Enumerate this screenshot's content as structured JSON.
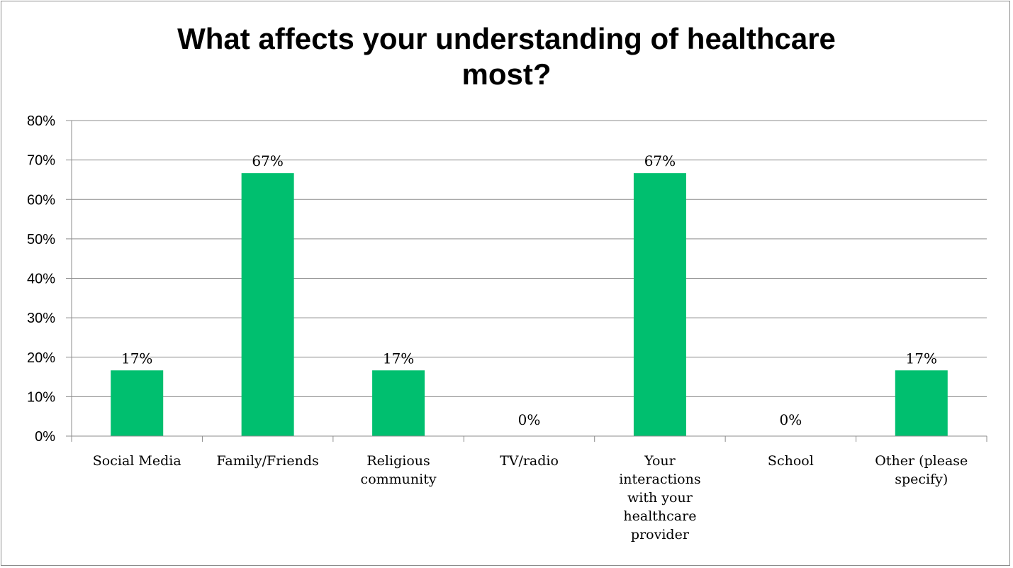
{
  "chart_data": {
    "type": "bar",
    "title_lines": [
      "What affects your understanding of healthcare",
      "most?"
    ],
    "categories": [
      [
        "Social Media"
      ],
      [
        "Family/Friends"
      ],
      [
        "Religious",
        "community"
      ],
      [
        "TV/radio"
      ],
      [
        "Your",
        "interactions",
        "with your",
        "healthcare",
        "provider"
      ],
      [
        "School"
      ],
      [
        "Other (please",
        "specify)"
      ]
    ],
    "values": [
      16.67,
      66.67,
      16.67,
      0,
      66.67,
      0,
      16.67
    ],
    "data_labels": [
      "17%",
      "67%",
      "17%",
      "0%",
      "67%",
      "0%",
      "17%"
    ],
    "yticks": [
      "0%",
      "10%",
      "20%",
      "30%",
      "40%",
      "50%",
      "60%",
      "70%",
      "80%"
    ],
    "ylim": [
      0,
      80
    ],
    "grid": true,
    "legend": "none",
    "bar_color": "#00bf6f"
  }
}
